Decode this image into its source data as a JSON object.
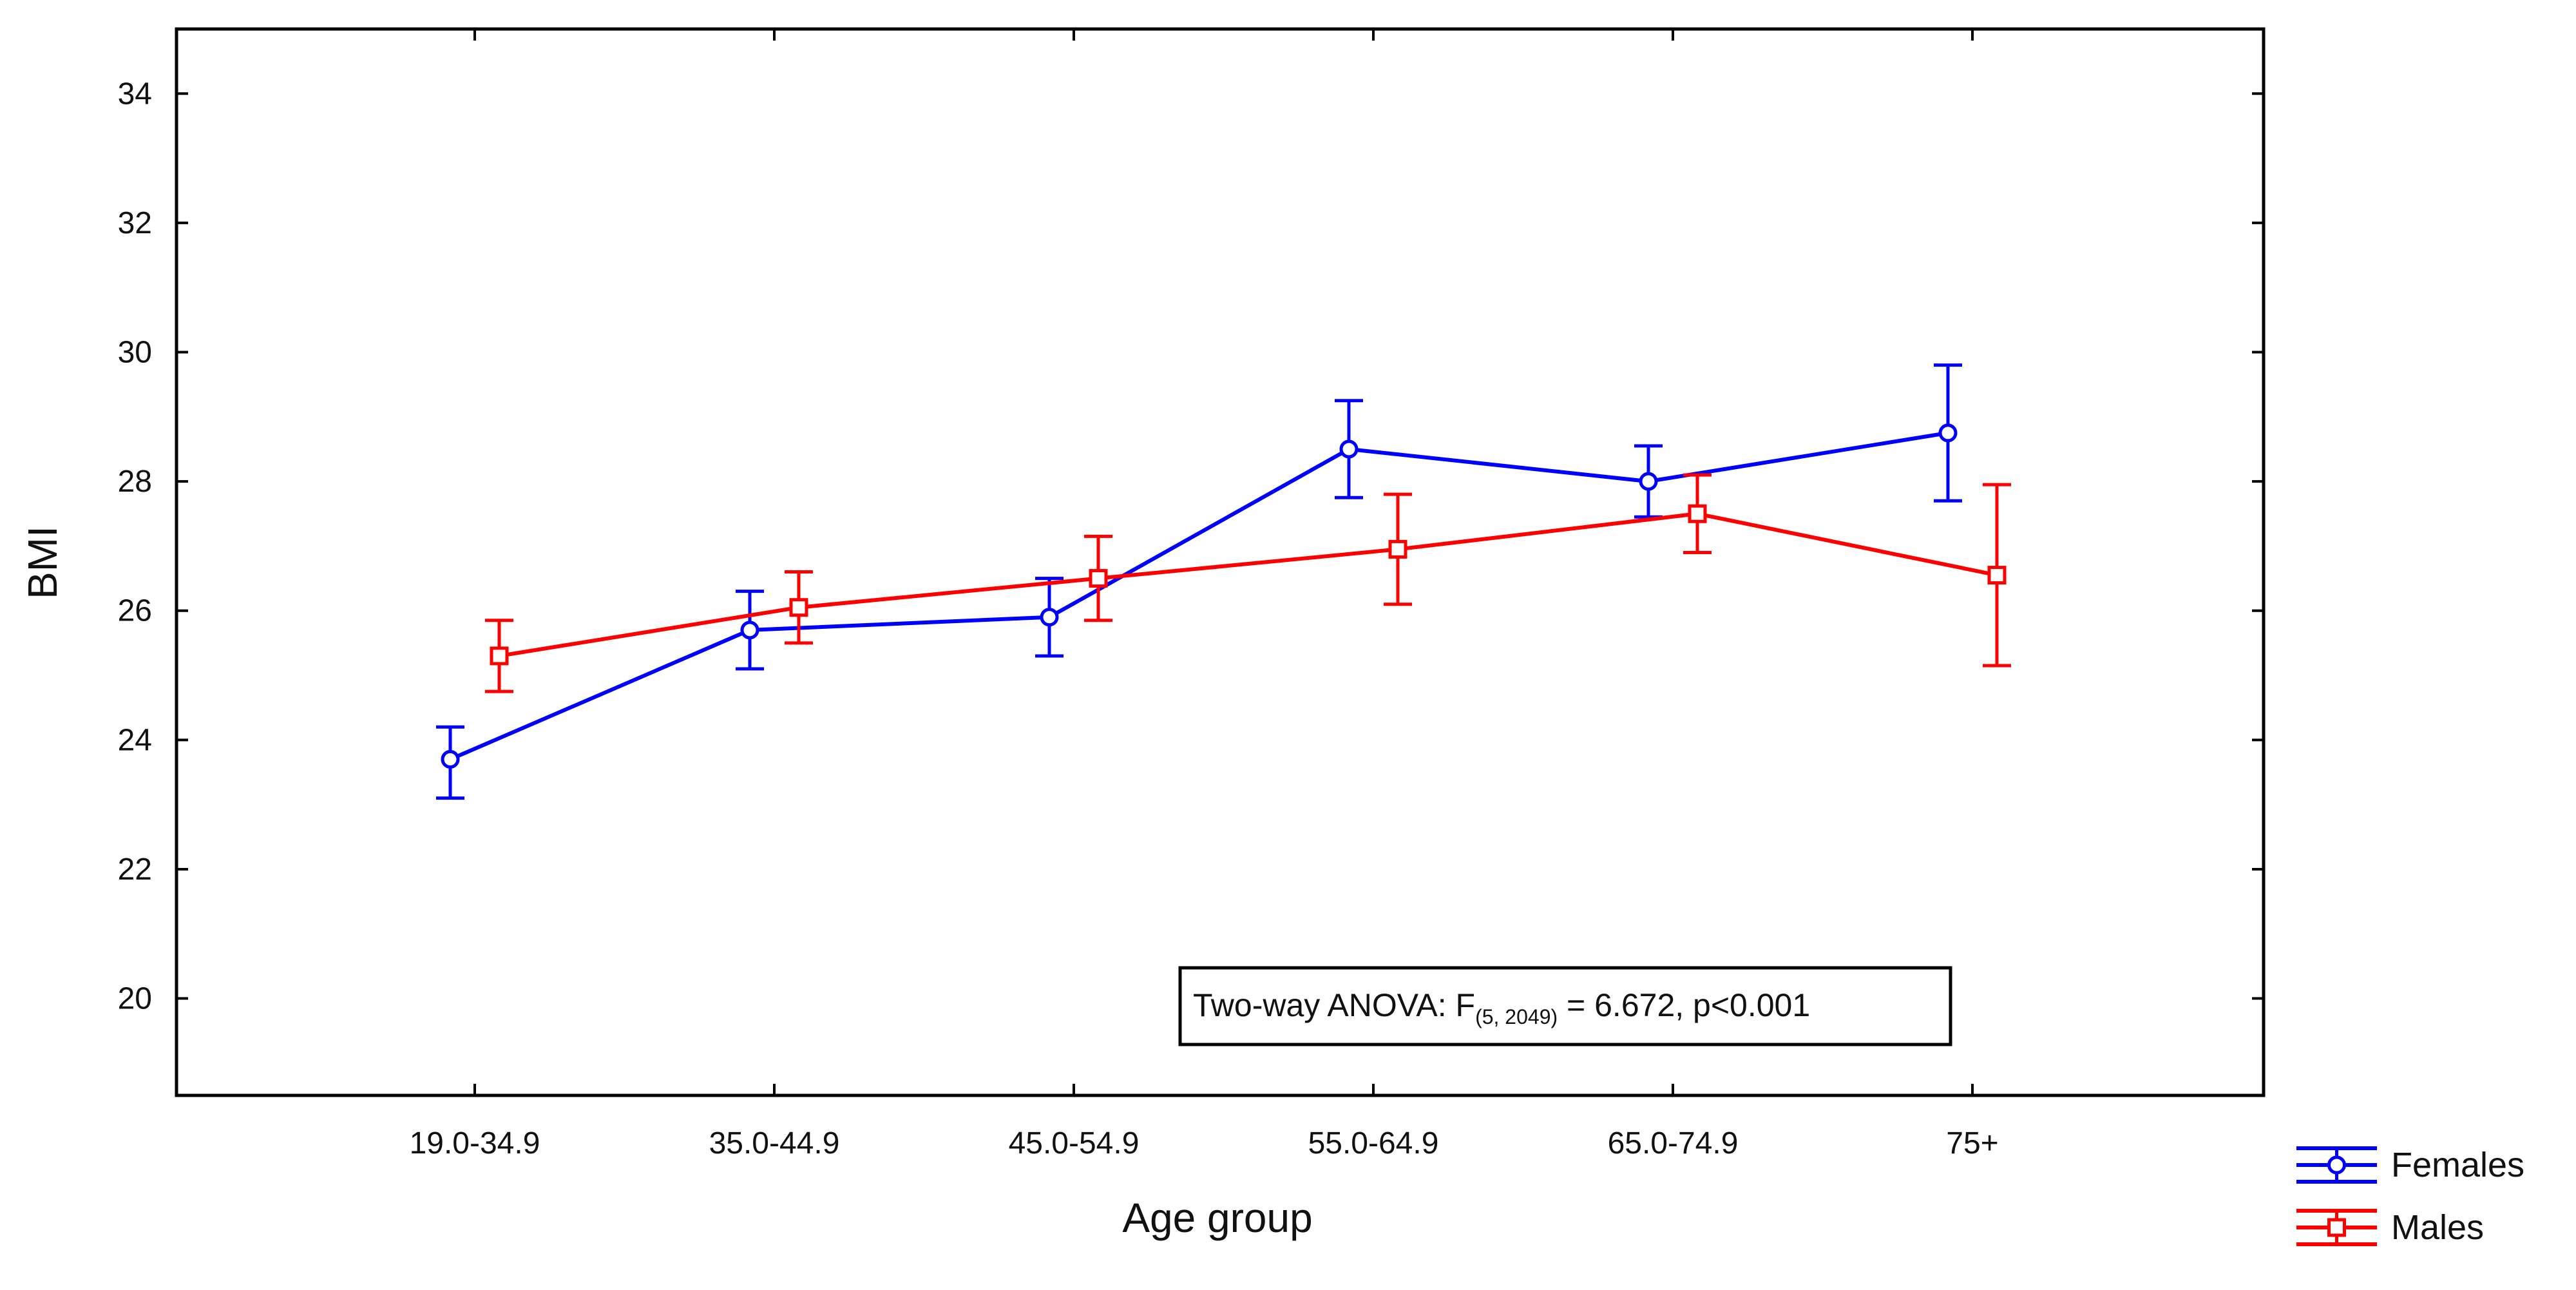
{
  "chart_data": {
    "type": "line",
    "title": "",
    "xlabel": "Age group",
    "ylabel": "BMI",
    "categories": [
      "19.0-34.9",
      "35.0-44.9",
      "45.0-54.9",
      "55.0-64.9",
      "65.0-74.9",
      "75+"
    ],
    "ylim": [
      18.5,
      35
    ],
    "yticks": [
      "20",
      "22",
      "24",
      "26",
      "28",
      "30",
      "32",
      "34"
    ],
    "grid": false,
    "legend_position": "bottom-right outside",
    "series": [
      {
        "name": "Females",
        "color": "#0000ff",
        "marker": "circle",
        "values": [
          23.7,
          25.7,
          25.9,
          28.5,
          28.0,
          28.75
        ],
        "lower": [
          23.1,
          25.1,
          25.3,
          27.75,
          27.45,
          27.7
        ],
        "upper": [
          24.2,
          26.3,
          26.5,
          29.25,
          28.55,
          29.8
        ]
      },
      {
        "name": "Males",
        "color": "#ff0000",
        "marker": "square",
        "values": [
          25.3,
          26.05,
          26.5,
          26.95,
          27.5,
          26.55
        ],
        "lower": [
          24.75,
          25.5,
          25.85,
          26.1,
          26.9,
          25.15
        ],
        "upper": [
          25.85,
          26.6,
          27.15,
          27.8,
          28.1,
          27.95
        ]
      }
    ],
    "annotation": {
      "prefix": "Two-way ANOVA: F",
      "subscript": "(5, 2049)",
      "suffix": " = 6.672, p<0.001"
    }
  }
}
